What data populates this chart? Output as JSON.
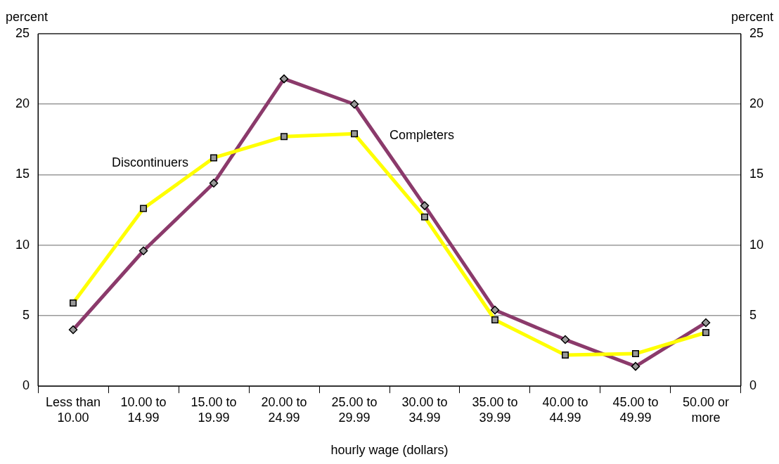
{
  "chart_data": {
    "type": "line",
    "xlabel": "hourly wage (dollars)",
    "ylabel": "percent",
    "y2label": "percent",
    "categories": [
      "Less than 10.00",
      "10.00 to 14.99",
      "15.00 to 19.99",
      "20.00 to 24.99",
      "25.00 to 29.99",
      "30.00 to 34.99",
      "35.00 to 39.99",
      "40.00 to 44.99",
      "45.00 to 49.99",
      "50.00 or more"
    ],
    "series": [
      {
        "name": "Completers",
        "color": "#8b3a6b",
        "marker": "diamond",
        "values": [
          4.0,
          9.6,
          14.4,
          21.8,
          20.0,
          12.8,
          5.4,
          3.3,
          1.4,
          4.5
        ]
      },
      {
        "name": "Discontinuers",
        "color": "#ffff00",
        "marker": "square",
        "values": [
          5.9,
          12.6,
          16.2,
          17.7,
          17.9,
          12.0,
          4.7,
          2.2,
          2.3,
          3.8
        ]
      }
    ],
    "ylim": [
      0,
      25
    ],
    "yticks": [
      0,
      5,
      10,
      15,
      20,
      25
    ],
    "y2lim": [
      0,
      25
    ],
    "y2ticks": [
      0,
      5,
      10,
      15,
      20,
      25
    ],
    "grid": "y",
    "legend": false,
    "line_style": "solid"
  }
}
